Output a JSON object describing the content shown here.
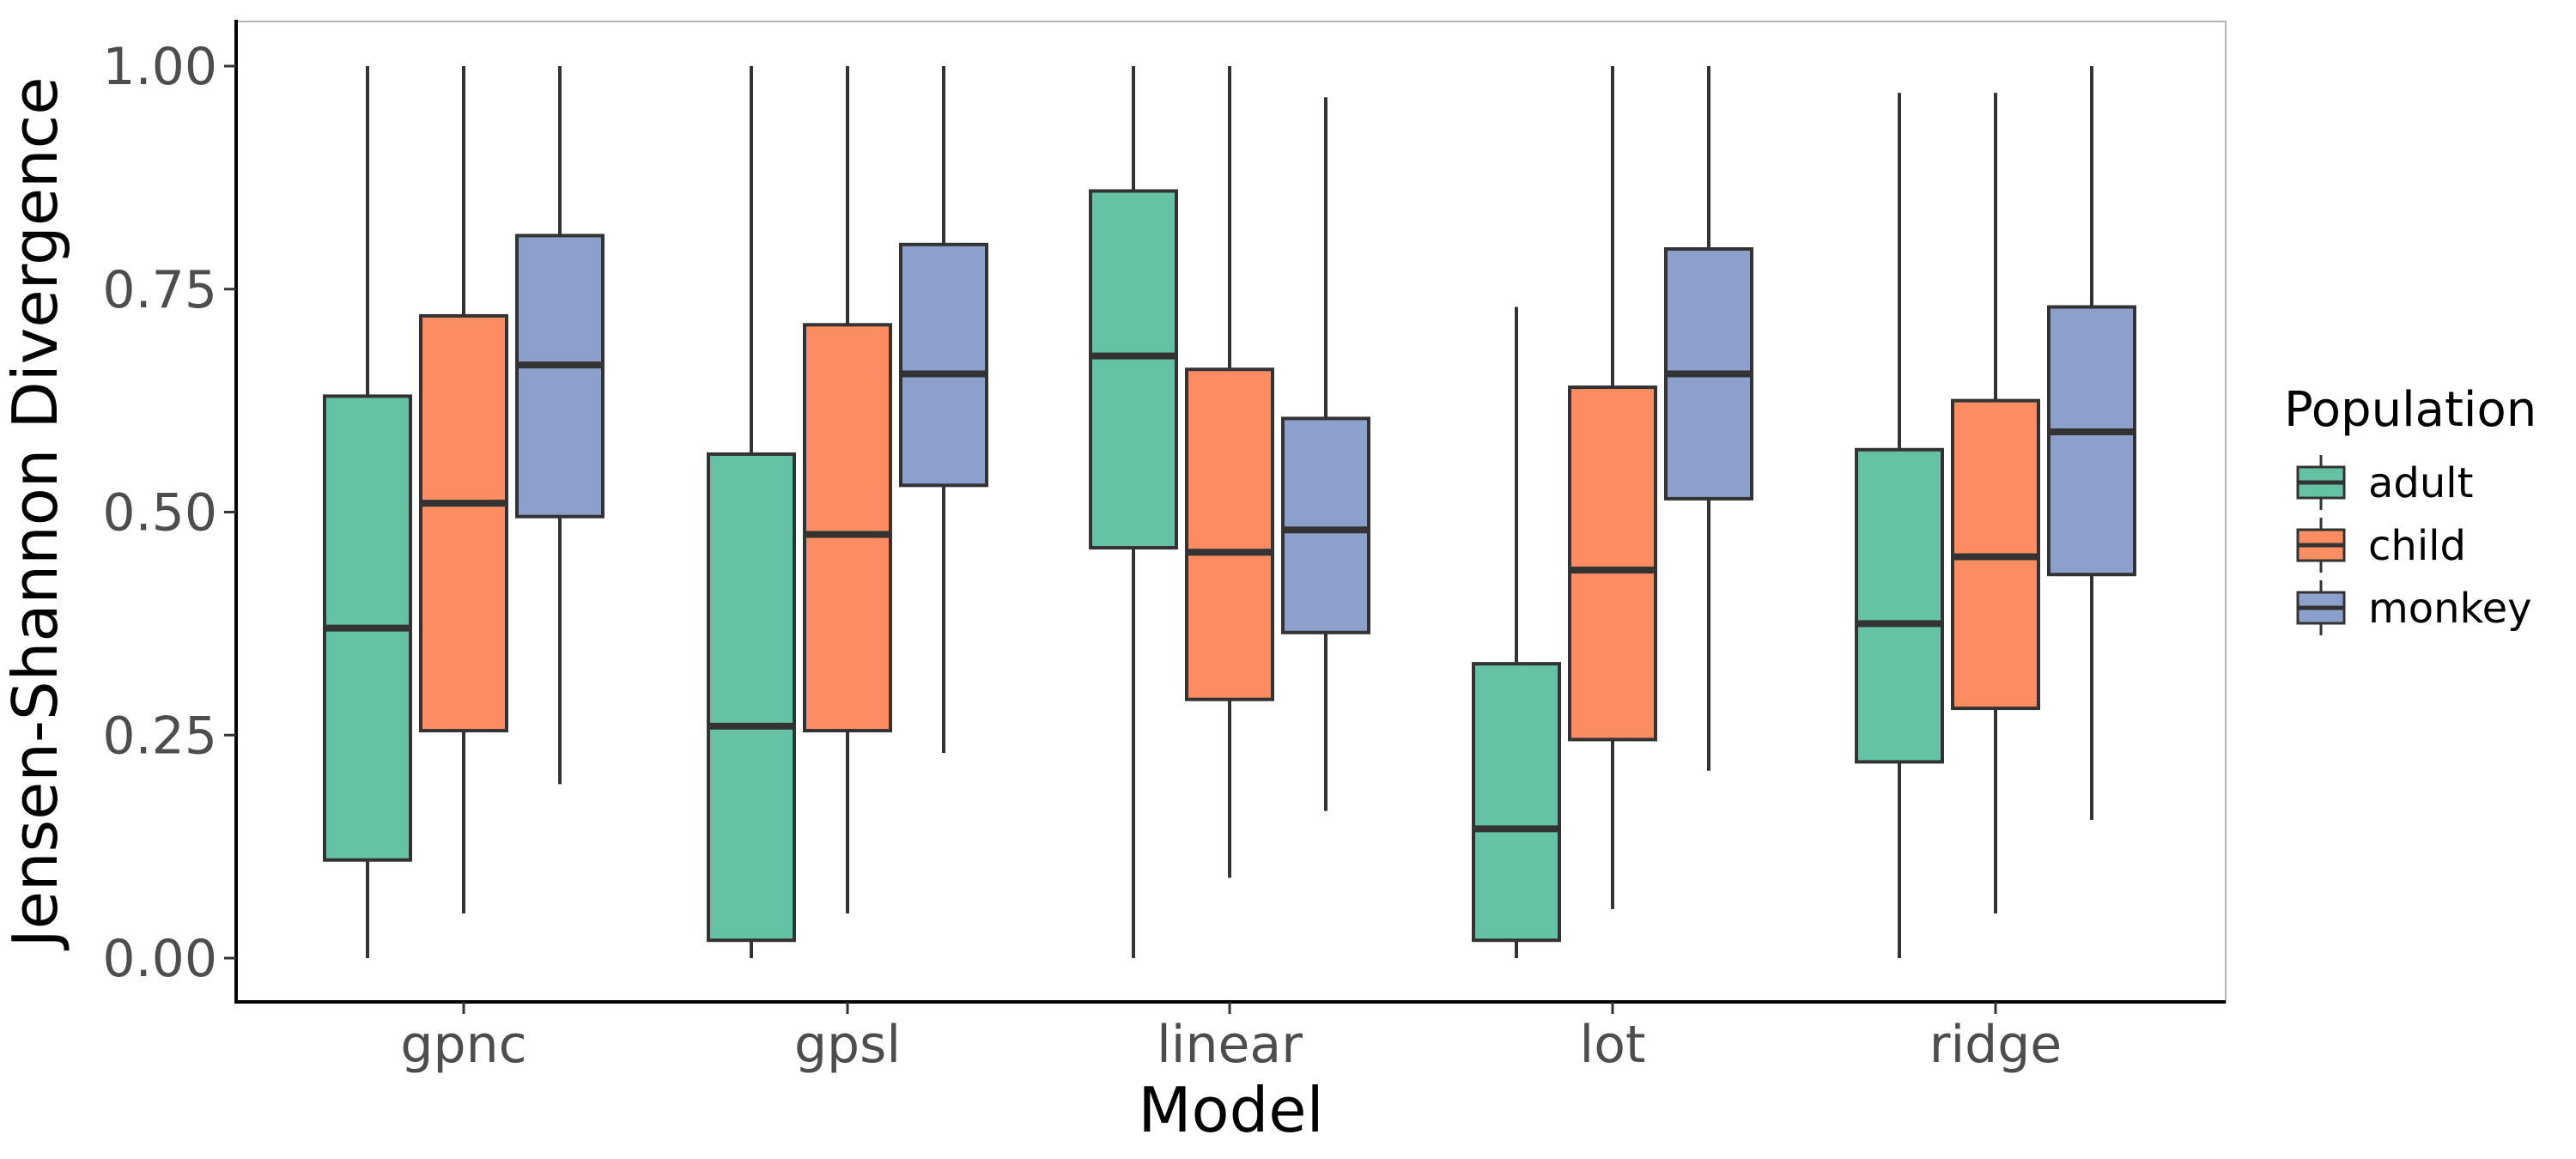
{
  "chart_data": {
    "type": "boxplot",
    "xlabel": "Model",
    "ylabel": "Jensen-Shannon Divergence",
    "ylim": [
      0,
      1
    ],
    "y_ticks": [
      "0.00",
      "0.25",
      "0.50",
      "0.75",
      "1.00"
    ],
    "y_tick_values": [
      0,
      0.25,
      0.5,
      0.75,
      1
    ],
    "categories": [
      "gpnc",
      "gpsl",
      "linear",
      "lot",
      "ridge"
    ],
    "legend": {
      "title": "Population",
      "position": "right"
    },
    "series": [
      {
        "name": "adult",
        "color": "#66c2a5",
        "boxes": [
          {
            "min": 0.0,
            "q1": 0.11,
            "median": 0.37,
            "q3": 0.63,
            "max": 1.0
          },
          {
            "min": 0.0,
            "q1": 0.02,
            "median": 0.26,
            "q3": 0.565,
            "max": 1.0
          },
          {
            "min": 0.0,
            "q1": 0.46,
            "median": 0.675,
            "q3": 0.86,
            "max": 1.0
          },
          {
            "min": 0.0,
            "q1": 0.02,
            "median": 0.145,
            "q3": 0.33,
            "max": 0.73
          },
          {
            "min": 0.0,
            "q1": 0.22,
            "median": 0.375,
            "q3": 0.57,
            "max": 0.97
          }
        ]
      },
      {
        "name": "child",
        "color": "#fc8d62",
        "boxes": [
          {
            "min": 0.05,
            "q1": 0.255,
            "median": 0.51,
            "q3": 0.72,
            "max": 1.0
          },
          {
            "min": 0.05,
            "q1": 0.255,
            "median": 0.475,
            "q3": 0.71,
            "max": 1.0
          },
          {
            "min": 0.09,
            "q1": 0.29,
            "median": 0.455,
            "q3": 0.66,
            "max": 1.0
          },
          {
            "min": 0.055,
            "q1": 0.245,
            "median": 0.435,
            "q3": 0.64,
            "max": 1.0
          },
          {
            "min": 0.05,
            "q1": 0.28,
            "median": 0.45,
            "q3": 0.625,
            "max": 0.97
          }
        ]
      },
      {
        "name": "monkey",
        "color": "#8da0cb",
        "boxes": [
          {
            "min": 0.195,
            "q1": 0.495,
            "median": 0.665,
            "q3": 0.81,
            "max": 1.0
          },
          {
            "min": 0.23,
            "q1": 0.53,
            "median": 0.655,
            "q3": 0.8,
            "max": 1.0
          },
          {
            "min": 0.165,
            "q1": 0.365,
            "median": 0.48,
            "q3": 0.605,
            "max": 0.965
          },
          {
            "min": 0.21,
            "q1": 0.515,
            "median": 0.655,
            "q3": 0.795,
            "max": 1.0
          },
          {
            "min": 0.155,
            "q1": 0.43,
            "median": 0.59,
            "q3": 0.73,
            "max": 1.0
          }
        ]
      }
    ]
  }
}
